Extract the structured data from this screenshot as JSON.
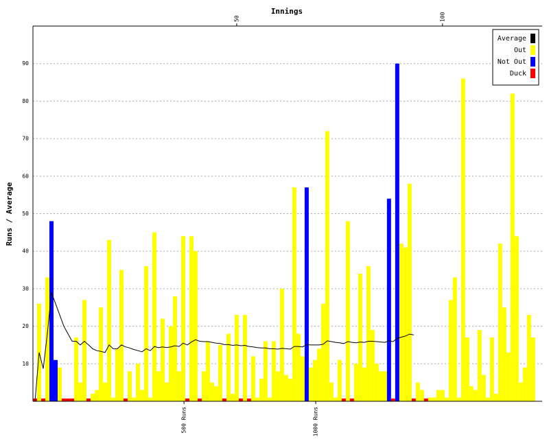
{
  "chart_data": {
    "type": "bar",
    "title": "Innings",
    "y_label": "Runs / Average",
    "x": [
      1,
      2,
      3,
      4,
      5,
      6,
      7,
      8,
      9,
      10,
      11,
      12,
      13,
      14,
      15,
      16,
      17,
      18,
      19,
      20,
      21,
      22,
      23,
      24,
      25,
      26,
      27,
      28,
      29,
      30,
      31,
      32,
      33,
      34,
      35,
      36,
      37,
      38,
      39,
      40,
      41,
      42,
      43,
      44,
      45,
      46,
      47,
      48,
      49,
      50,
      51,
      52,
      53,
      54,
      55,
      56,
      57,
      58,
      59,
      60,
      61,
      62,
      63,
      64,
      65,
      66,
      67,
      68,
      69,
      70,
      71,
      72,
      73,
      74,
      75,
      76,
      77,
      78,
      79,
      80,
      81,
      82,
      83,
      84,
      85,
      86,
      87,
      88,
      89,
      90,
      91,
      92,
      93,
      94,
      95,
      96,
      97,
      98,
      99,
      100,
      101,
      102,
      103,
      104,
      105,
      106,
      107,
      108,
      109,
      110,
      111,
      112,
      113,
      114,
      115,
      116,
      117,
      118,
      119,
      120,
      121,
      122
    ],
    "xlim": [
      0.5,
      124.2
    ],
    "x2ticks": [
      50,
      100
    ],
    "xticks": [
      {
        "value": 37.2,
        "label": "500 Runs"
      },
      {
        "value": 69.2,
        "label": "1000 Runs"
      }
    ],
    "ylim": [
      0,
      100
    ],
    "yticks": [
      10,
      20,
      30,
      40,
      50,
      60,
      70,
      80,
      90
    ],
    "grid": true,
    "legend": "top-right",
    "series": [
      {
        "name": "Average",
        "color": "#000000",
        "type": "line",
        "values": [
          0,
          13,
          8.7,
          18,
          29,
          26,
          23,
          20,
          18,
          16,
          16,
          15,
          16,
          15,
          14,
          13.5,
          13.3,
          13,
          15,
          14,
          14,
          15,
          14.5,
          14.2,
          13.8,
          13.5,
          13.2,
          14,
          13.5,
          14.6,
          14.3,
          14.5,
          14.3,
          14.5,
          14.8,
          14.6,
          15.5,
          15,
          15.8,
          16.4,
          16,
          15.9,
          15.9,
          15.7,
          15.5,
          15.4,
          15.1,
          15.1,
          14.9,
          15,
          14.8,
          14.9,
          14.6,
          14.5,
          14.3,
          14.2,
          14.2,
          14,
          14,
          13.9,
          14.1,
          14,
          13.9,
          14.6,
          14.6,
          14.5,
          15.1,
          15,
          15,
          15,
          15.2,
          16.1,
          15.9,
          15.7,
          15.6,
          15.4,
          15.9,
          15.7,
          15.6,
          15.8,
          15.7,
          16,
          16,
          15.9,
          15.8,
          15.7,
          16.1,
          15.9,
          16.8,
          17.1,
          17.4,
          17.9,
          17.7,
          null,
          null,
          null,
          null,
          null,
          null,
          null,
          null,
          null,
          null,
          null,
          null,
          null,
          null,
          null,
          null,
          null,
          null,
          null,
          null,
          null,
          null,
          null,
          null,
          null,
          null,
          null,
          null,
          null
        ]
      },
      {
        "name": "Out",
        "color": "#ffff00",
        "type": "bar",
        "values": [
          null,
          26,
          null,
          33,
          null,
          null,
          9,
          null,
          null,
          null,
          17,
          5,
          27,
          null,
          2,
          3,
          25,
          5,
          43,
          1,
          14,
          35,
          null,
          8,
          1,
          10,
          3,
          36,
          1,
          45,
          8,
          22,
          5,
          20,
          28,
          8,
          44,
          null,
          44,
          40,
          null,
          8,
          16,
          5,
          4,
          15,
          null,
          18,
          2,
          23,
          null,
          23,
          null,
          12,
          1,
          6,
          16,
          1,
          16,
          8,
          30,
          7,
          6,
          57,
          18,
          12,
          null,
          9,
          11,
          14,
          26,
          72,
          5,
          1,
          11,
          null,
          48,
          null,
          10,
          34,
          9,
          36,
          19,
          10,
          8,
          8,
          null,
          null,
          null,
          42,
          41,
          58,
          null,
          5,
          3,
          null,
          1,
          1,
          3,
          3,
          1,
          27,
          33,
          1,
          86,
          17,
          4,
          3,
          19,
          7,
          1,
          17,
          2,
          42,
          25,
          13,
          82,
          44,
          5,
          9,
          23,
          17
        ]
      },
      {
        "name": "Not Out",
        "color": "#0000ff",
        "type": "bar",
        "values": [
          null,
          null,
          null,
          null,
          48,
          11,
          null,
          null,
          null,
          null,
          null,
          null,
          null,
          null,
          null,
          null,
          null,
          null,
          null,
          null,
          null,
          null,
          null,
          null,
          null,
          null,
          null,
          null,
          null,
          null,
          null,
          null,
          null,
          null,
          null,
          null,
          null,
          null,
          null,
          null,
          null,
          null,
          null,
          null,
          null,
          null,
          null,
          null,
          null,
          null,
          null,
          null,
          null,
          null,
          null,
          null,
          null,
          null,
          null,
          null,
          null,
          null,
          null,
          null,
          null,
          null,
          57,
          null,
          null,
          null,
          null,
          null,
          null,
          null,
          null,
          null,
          null,
          null,
          null,
          null,
          null,
          null,
          null,
          null,
          null,
          null,
          54,
          null,
          90,
          null,
          null,
          null,
          null,
          null,
          null,
          null,
          null,
          null,
          null,
          null,
          null,
          null,
          null,
          null,
          null,
          null,
          null,
          null,
          null,
          null,
          null,
          null,
          null,
          null,
          null,
          null,
          null,
          null,
          null,
          null,
          null,
          null
        ]
      },
      {
        "name": "Duck",
        "color": "#ff0000",
        "type": "bar",
        "values": [
          0,
          null,
          0,
          null,
          null,
          null,
          null,
          0,
          0,
          0,
          null,
          null,
          null,
          0,
          null,
          null,
          null,
          null,
          null,
          null,
          null,
          null,
          0,
          null,
          null,
          null,
          null,
          null,
          null,
          null,
          null,
          null,
          null,
          null,
          null,
          null,
          null,
          0,
          null,
          null,
          0,
          null,
          null,
          null,
          null,
          null,
          0,
          null,
          null,
          null,
          0,
          null,
          0,
          null,
          null,
          null,
          null,
          null,
          null,
          null,
          null,
          null,
          null,
          null,
          null,
          null,
          null,
          null,
          null,
          null,
          null,
          null,
          null,
          null,
          null,
          0,
          null,
          0,
          null,
          null,
          null,
          null,
          null,
          null,
          null,
          null,
          null,
          0,
          null,
          null,
          null,
          null,
          0,
          null,
          null,
          0,
          null,
          null,
          null,
          null,
          null,
          null,
          null,
          null,
          null,
          null,
          null,
          null,
          null,
          null,
          null,
          null,
          null,
          null,
          null,
          null,
          null,
          null,
          null,
          null,
          null,
          null
        ]
      }
    ]
  }
}
